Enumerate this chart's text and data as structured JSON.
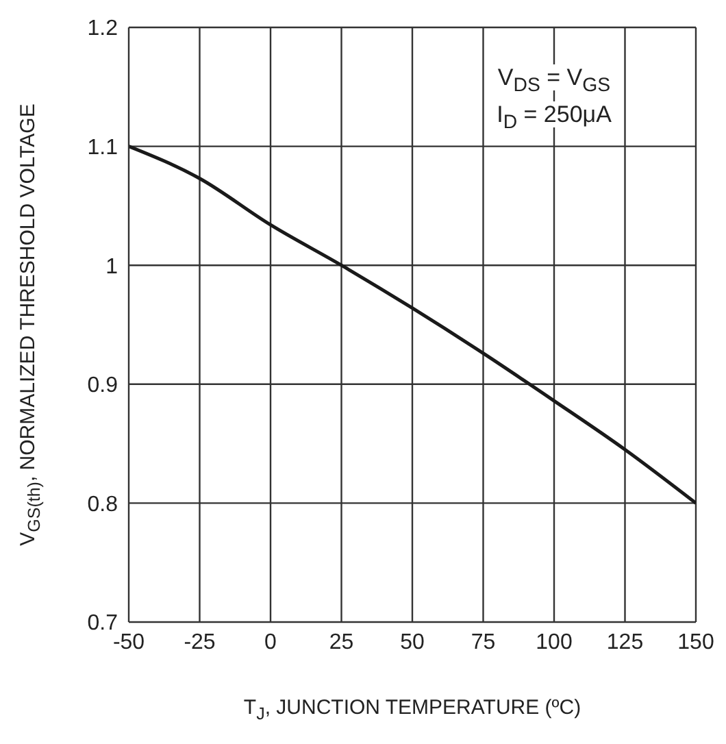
{
  "chart_data": {
    "type": "line",
    "xlabel": "T$_{J}$, JUNCTION TEMPERATURE (ºC)",
    "ylabel": "V$_{GS(th)}$, NORMALIZED THRESHOLD VOLTAGE",
    "annotations": [
      "V$_{DS}$ = V$_{GS}$",
      "I$_{D}$ = 250μA"
    ],
    "x": [
      -50,
      -25,
      0,
      25,
      50,
      75,
      100,
      125,
      150
    ],
    "series": [
      {
        "color": "#1a1a1a",
        "values": [
          1.1,
          1.073,
          1.034,
          1.0,
          0.964,
          0.926,
          0.886,
          0.845,
          0.8
        ]
      }
    ],
    "xlim": [
      -50,
      150
    ],
    "xticks": [
      -50,
      -25,
      0,
      25,
      50,
      75,
      100,
      125,
      150
    ],
    "ylim": [
      0.7,
      1.2
    ],
    "yticks": [
      0.7,
      0.8,
      0.9,
      1,
      1.1,
      1.2
    ],
    "grid": true
  }
}
